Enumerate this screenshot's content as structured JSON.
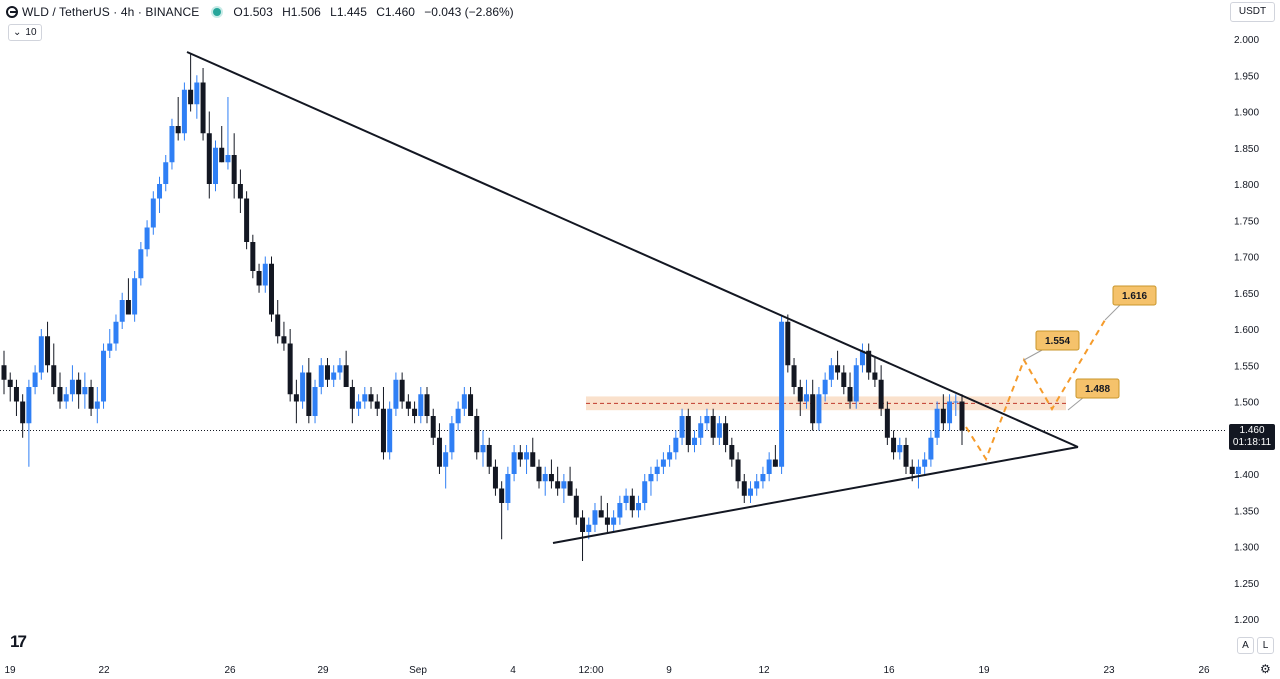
{
  "header": {
    "symbol": "WLD / TetherUS · 4h · BINANCE",
    "open": "O1.503",
    "high": "H1.506",
    "low": "L1.445",
    "close": "C1.460",
    "change": "−0.043 (−2.86%)"
  },
  "indicator_label": "10",
  "currency": "USDT",
  "price_tag": {
    "price": "1.460",
    "countdown": "01:18:11"
  },
  "axis_buttons": {
    "auto": "A",
    "log": "L"
  },
  "colors": {
    "up": "#2f7ff5",
    "down": "#131722",
    "zone": "#f5c9a3",
    "projection": "#f59b2b",
    "label_bg": "#f5c26b"
  },
  "chart_data": {
    "type": "candlestick",
    "y_ticks": [
      "2.000",
      "1.950",
      "1.900",
      "1.850",
      "1.800",
      "1.750",
      "1.700",
      "1.650",
      "1.600",
      "1.550",
      "1.500",
      "1.450",
      "1.400",
      "1.350",
      "1.300",
      "1.250",
      "1.200"
    ],
    "ylim": [
      1.2,
      2.0
    ],
    "x_ticks": [
      "19",
      "22",
      "26",
      "29",
      "Sep",
      "4",
      "12:00",
      "9",
      "12",
      "16",
      "19",
      "23",
      "26"
    ],
    "ohlc": [
      [
        1.55,
        1.57,
        1.51,
        1.53
      ],
      [
        1.53,
        1.54,
        1.5,
        1.52
      ],
      [
        1.52,
        1.53,
        1.48,
        1.5
      ],
      [
        1.5,
        1.51,
        1.45,
        1.47
      ],
      [
        1.47,
        1.53,
        1.41,
        1.52
      ],
      [
        1.52,
        1.55,
        1.51,
        1.54
      ],
      [
        1.54,
        1.6,
        1.53,
        1.59
      ],
      [
        1.59,
        1.61,
        1.54,
        1.55
      ],
      [
        1.55,
        1.58,
        1.51,
        1.52
      ],
      [
        1.52,
        1.54,
        1.49,
        1.5
      ],
      [
        1.5,
        1.52,
        1.49,
        1.51
      ],
      [
        1.51,
        1.55,
        1.5,
        1.53
      ],
      [
        1.53,
        1.54,
        1.49,
        1.51
      ],
      [
        1.51,
        1.54,
        1.49,
        1.52
      ],
      [
        1.52,
        1.53,
        1.48,
        1.49
      ],
      [
        1.49,
        1.52,
        1.47,
        1.5
      ],
      [
        1.5,
        1.58,
        1.49,
        1.57
      ],
      [
        1.57,
        1.6,
        1.56,
        1.58
      ],
      [
        1.58,
        1.62,
        1.57,
        1.61
      ],
      [
        1.61,
        1.65,
        1.6,
        1.64
      ],
      [
        1.64,
        1.67,
        1.62,
        1.62
      ],
      [
        1.62,
        1.68,
        1.61,
        1.67
      ],
      [
        1.67,
        1.72,
        1.66,
        1.71
      ],
      [
        1.71,
        1.75,
        1.7,
        1.74
      ],
      [
        1.74,
        1.79,
        1.73,
        1.78
      ],
      [
        1.78,
        1.81,
        1.76,
        1.8
      ],
      [
        1.8,
        1.84,
        1.79,
        1.83
      ],
      [
        1.83,
        1.89,
        1.82,
        1.88
      ],
      [
        1.88,
        1.92,
        1.86,
        1.87
      ],
      [
        1.87,
        1.94,
        1.86,
        1.93
      ],
      [
        1.93,
        1.98,
        1.9,
        1.91
      ],
      [
        1.91,
        1.95,
        1.89,
        1.94
      ],
      [
        1.94,
        1.96,
        1.86,
        1.87
      ],
      [
        1.87,
        1.9,
        1.78,
        1.8
      ],
      [
        1.8,
        1.86,
        1.79,
        1.85
      ],
      [
        1.85,
        1.88,
        1.83,
        1.83
      ],
      [
        1.83,
        1.92,
        1.82,
        1.84
      ],
      [
        1.84,
        1.87,
        1.78,
        1.8
      ],
      [
        1.8,
        1.82,
        1.76,
        1.78
      ],
      [
        1.78,
        1.79,
        1.71,
        1.72
      ],
      [
        1.72,
        1.73,
        1.67,
        1.68
      ],
      [
        1.68,
        1.69,
        1.65,
        1.66
      ],
      [
        1.66,
        1.7,
        1.65,
        1.69
      ],
      [
        1.69,
        1.7,
        1.61,
        1.62
      ],
      [
        1.62,
        1.64,
        1.58,
        1.59
      ],
      [
        1.59,
        1.61,
        1.57,
        1.58
      ],
      [
        1.58,
        1.6,
        1.5,
        1.51
      ],
      [
        1.51,
        1.53,
        1.47,
        1.5
      ],
      [
        1.5,
        1.55,
        1.49,
        1.54
      ],
      [
        1.54,
        1.56,
        1.47,
        1.48
      ],
      [
        1.48,
        1.53,
        1.47,
        1.52
      ],
      [
        1.52,
        1.56,
        1.51,
        1.55
      ],
      [
        1.55,
        1.56,
        1.52,
        1.53
      ],
      [
        1.53,
        1.55,
        1.52,
        1.54
      ],
      [
        1.54,
        1.56,
        1.53,
        1.55
      ],
      [
        1.55,
        1.57,
        1.52,
        1.52
      ],
      [
        1.52,
        1.53,
        1.47,
        1.49
      ],
      [
        1.49,
        1.51,
        1.48,
        1.5
      ],
      [
        1.5,
        1.52,
        1.49,
        1.51
      ],
      [
        1.51,
        1.52,
        1.49,
        1.5
      ],
      [
        1.5,
        1.51,
        1.48,
        1.49
      ],
      [
        1.49,
        1.52,
        1.42,
        1.43
      ],
      [
        1.43,
        1.5,
        1.42,
        1.49
      ],
      [
        1.49,
        1.54,
        1.48,
        1.53
      ],
      [
        1.53,
        1.54,
        1.49,
        1.5
      ],
      [
        1.5,
        1.51,
        1.48,
        1.49
      ],
      [
        1.49,
        1.5,
        1.47,
        1.48
      ],
      [
        1.48,
        1.52,
        1.47,
        1.51
      ],
      [
        1.51,
        1.52,
        1.47,
        1.48
      ],
      [
        1.48,
        1.49,
        1.44,
        1.45
      ],
      [
        1.45,
        1.47,
        1.4,
        1.41
      ],
      [
        1.41,
        1.44,
        1.38,
        1.43
      ],
      [
        1.43,
        1.48,
        1.42,
        1.47
      ],
      [
        1.47,
        1.5,
        1.46,
        1.49
      ],
      [
        1.49,
        1.52,
        1.48,
        1.51
      ],
      [
        1.51,
        1.52,
        1.48,
        1.48
      ],
      [
        1.48,
        1.49,
        1.42,
        1.43
      ],
      [
        1.43,
        1.46,
        1.41,
        1.44
      ],
      [
        1.44,
        1.45,
        1.4,
        1.41
      ],
      [
        1.41,
        1.42,
        1.37,
        1.38
      ],
      [
        1.38,
        1.39,
        1.31,
        1.36
      ],
      [
        1.36,
        1.41,
        1.35,
        1.4
      ],
      [
        1.4,
        1.44,
        1.39,
        1.43
      ],
      [
        1.43,
        1.44,
        1.41,
        1.42
      ],
      [
        1.42,
        1.44,
        1.4,
        1.43
      ],
      [
        1.43,
        1.45,
        1.41,
        1.41
      ],
      [
        1.41,
        1.42,
        1.38,
        1.39
      ],
      [
        1.39,
        1.41,
        1.37,
        1.4
      ],
      [
        1.4,
        1.42,
        1.38,
        1.39
      ],
      [
        1.39,
        1.41,
        1.37,
        1.38
      ],
      [
        1.38,
        1.4,
        1.36,
        1.39
      ],
      [
        1.39,
        1.41,
        1.37,
        1.37
      ],
      [
        1.37,
        1.38,
        1.33,
        1.34
      ],
      [
        1.34,
        1.35,
        1.28,
        1.32
      ],
      [
        1.32,
        1.34,
        1.31,
        1.33
      ],
      [
        1.33,
        1.36,
        1.32,
        1.35
      ],
      [
        1.35,
        1.37,
        1.34,
        1.34
      ],
      [
        1.34,
        1.36,
        1.32,
        1.33
      ],
      [
        1.33,
        1.35,
        1.32,
        1.34
      ],
      [
        1.34,
        1.37,
        1.33,
        1.36
      ],
      [
        1.36,
        1.38,
        1.35,
        1.37
      ],
      [
        1.37,
        1.38,
        1.34,
        1.35
      ],
      [
        1.35,
        1.37,
        1.34,
        1.36
      ],
      [
        1.36,
        1.4,
        1.35,
        1.39
      ],
      [
        1.39,
        1.41,
        1.37,
        1.4
      ],
      [
        1.4,
        1.42,
        1.39,
        1.41
      ],
      [
        1.41,
        1.43,
        1.4,
        1.42
      ],
      [
        1.42,
        1.44,
        1.41,
        1.43
      ],
      [
        1.43,
        1.46,
        1.42,
        1.45
      ],
      [
        1.45,
        1.49,
        1.44,
        1.48
      ],
      [
        1.48,
        1.49,
        1.43,
        1.44
      ],
      [
        1.44,
        1.46,
        1.43,
        1.45
      ],
      [
        1.45,
        1.48,
        1.44,
        1.47
      ],
      [
        1.47,
        1.49,
        1.46,
        1.48
      ],
      [
        1.48,
        1.49,
        1.44,
        1.45
      ],
      [
        1.45,
        1.48,
        1.44,
        1.47
      ],
      [
        1.47,
        1.48,
        1.43,
        1.44
      ],
      [
        1.44,
        1.45,
        1.41,
        1.42
      ],
      [
        1.42,
        1.43,
        1.38,
        1.39
      ],
      [
        1.39,
        1.4,
        1.36,
        1.37
      ],
      [
        1.37,
        1.39,
        1.36,
        1.38
      ],
      [
        1.38,
        1.4,
        1.37,
        1.39
      ],
      [
        1.39,
        1.41,
        1.38,
        1.4
      ],
      [
        1.4,
        1.43,
        1.39,
        1.42
      ],
      [
        1.42,
        1.44,
        1.41,
        1.41
      ],
      [
        1.41,
        1.62,
        1.4,
        1.61
      ],
      [
        1.61,
        1.62,
        1.54,
        1.55
      ],
      [
        1.55,
        1.56,
        1.51,
        1.52
      ],
      [
        1.52,
        1.53,
        1.48,
        1.5
      ],
      [
        1.5,
        1.53,
        1.49,
        1.51
      ],
      [
        1.51,
        1.53,
        1.46,
        1.47
      ],
      [
        1.47,
        1.52,
        1.46,
        1.51
      ],
      [
        1.51,
        1.54,
        1.5,
        1.53
      ],
      [
        1.53,
        1.56,
        1.52,
        1.55
      ],
      [
        1.55,
        1.57,
        1.53,
        1.54
      ],
      [
        1.54,
        1.55,
        1.51,
        1.52
      ],
      [
        1.52,
        1.54,
        1.49,
        1.5
      ],
      [
        1.5,
        1.56,
        1.49,
        1.55
      ],
      [
        1.55,
        1.58,
        1.54,
        1.57
      ],
      [
        1.57,
        1.58,
        1.53,
        1.54
      ],
      [
        1.54,
        1.56,
        1.52,
        1.53
      ],
      [
        1.53,
        1.55,
        1.48,
        1.49
      ],
      [
        1.49,
        1.5,
        1.44,
        1.45
      ],
      [
        1.45,
        1.46,
        1.42,
        1.43
      ],
      [
        1.43,
        1.45,
        1.42,
        1.44
      ],
      [
        1.44,
        1.45,
        1.4,
        1.41
      ],
      [
        1.41,
        1.42,
        1.39,
        1.4
      ],
      [
        1.4,
        1.42,
        1.38,
        1.41
      ],
      [
        1.41,
        1.43,
        1.4,
        1.42
      ],
      [
        1.42,
        1.46,
        1.41,
        1.45
      ],
      [
        1.45,
        1.5,
        1.44,
        1.49
      ],
      [
        1.49,
        1.51,
        1.46,
        1.47
      ],
      [
        1.47,
        1.51,
        1.46,
        1.5
      ],
      [
        1.5,
        1.51,
        1.48,
        1.5
      ],
      [
        1.5,
        1.51,
        1.44,
        1.46
      ]
    ],
    "resistance_zone": [
      1.488,
      1.507
    ],
    "current_price": 1.46,
    "projection_labels": [
      "1.554",
      "1.488",
      "1.616"
    ]
  }
}
